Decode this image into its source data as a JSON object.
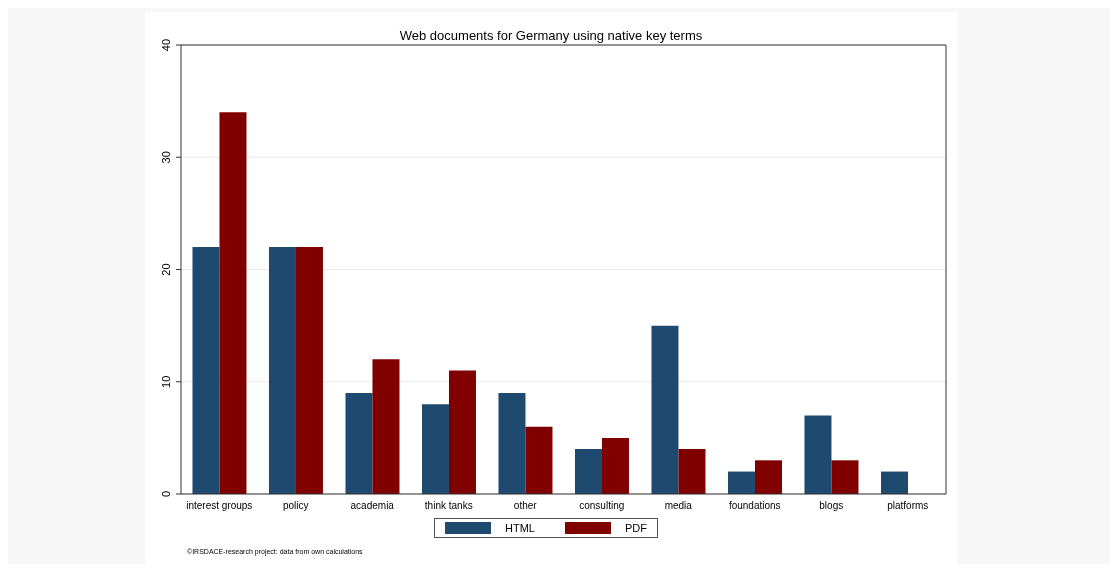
{
  "chart_data": {
    "type": "bar",
    "title": "Web documents for Germany using native key terms",
    "categories": [
      "interest groups",
      "policy",
      "academia",
      "think tanks",
      "other",
      "consulting",
      "media",
      "foundations",
      "blogs",
      "platforms"
    ],
    "series": [
      {
        "name": "HTML",
        "color": "#1f4a70",
        "values": [
          22,
          22,
          9,
          8,
          9,
          4,
          15,
          2,
          7,
          2
        ]
      },
      {
        "name": "PDF",
        "color": "#800000",
        "values": [
          34,
          22,
          12,
          11,
          6,
          5,
          4,
          3,
          3,
          0
        ]
      }
    ],
    "ylim": [
      0,
      40
    ],
    "yticks": [
      0,
      10,
      20,
      30,
      40
    ],
    "grid": "y",
    "legend": "bottom",
    "annotations": [
      "©IRSDACE-research project: data from own calculations"
    ]
  }
}
